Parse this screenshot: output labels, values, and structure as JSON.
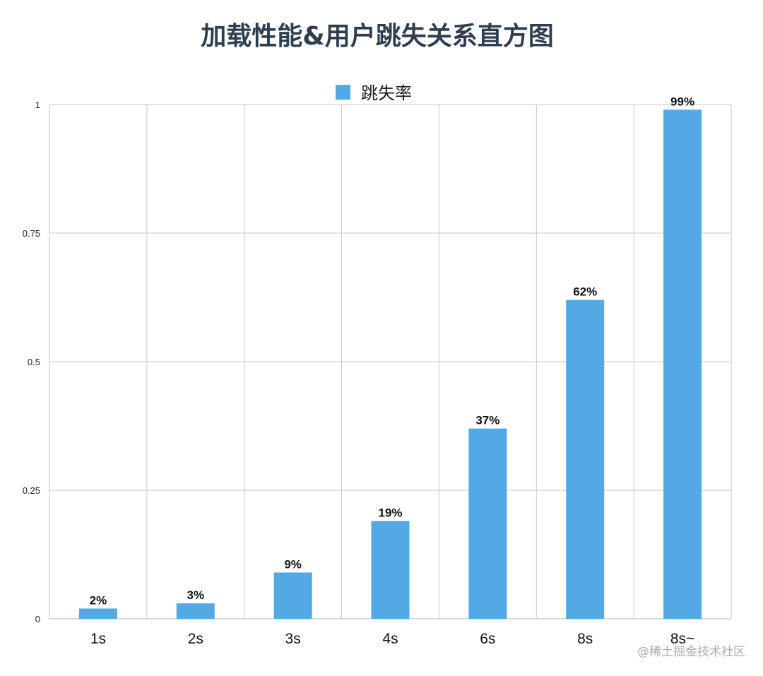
{
  "chart_data": {
    "type": "bar",
    "title": "加载性能&用户跳失关系直方图",
    "xlabel": "",
    "ylabel": "",
    "categories": [
      "1s",
      "2s",
      "3s",
      "4s",
      "6s",
      "8s",
      "8s~"
    ],
    "series": [
      {
        "name": "跳失率",
        "values": [
          0.02,
          0.03,
          0.09,
          0.19,
          0.37,
          0.62,
          0.99
        ],
        "labels": [
          "2%",
          "3%",
          "9%",
          "19%",
          "37%",
          "62%",
          "99%"
        ],
        "color": "#52a9e3"
      }
    ],
    "ylim": [
      0,
      1
    ],
    "yticks": [
      0,
      0.25,
      0.5,
      0.75,
      1
    ],
    "ytick_labels": [
      "0",
      "0.25",
      "0.5",
      "0.75",
      "1"
    ],
    "grid": true,
    "legend_position": "top-center"
  },
  "watermark": "@稀土掘金技术社区",
  "colors": {
    "bar": "#52a9e3",
    "title": "#2f3e4e",
    "grid": "#c9c9c9"
  }
}
